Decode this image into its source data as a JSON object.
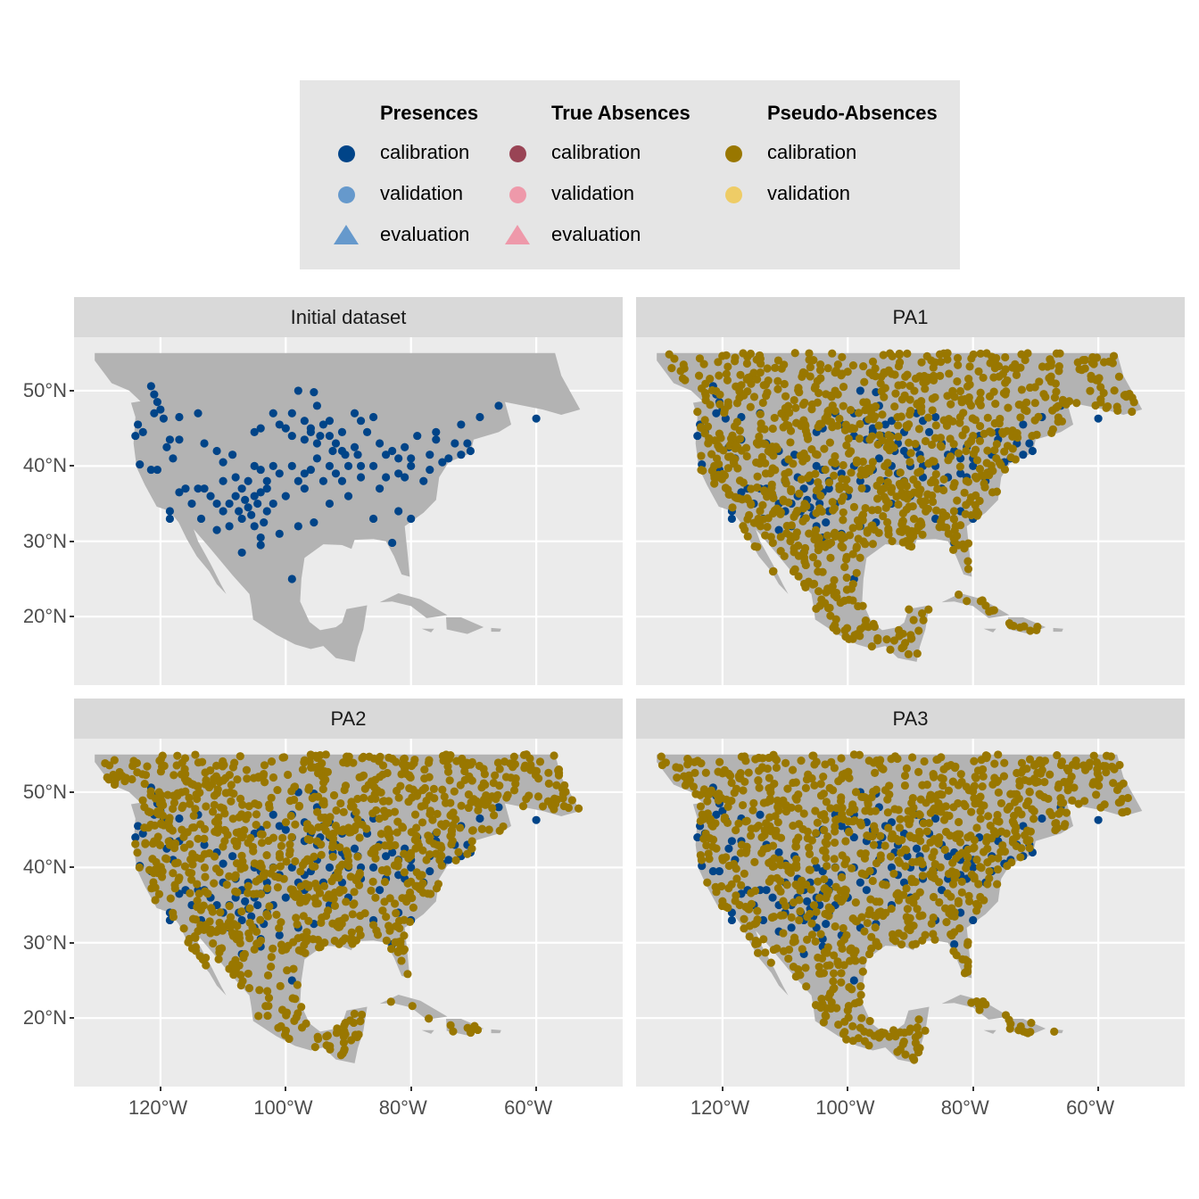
{
  "legend": {
    "groups": [
      {
        "title": "Presences",
        "items": [
          {
            "label": "calibration",
            "shape": "circle",
            "color": "#004488"
          },
          {
            "label": "validation",
            "shape": "circle",
            "color": "#6699CC"
          },
          {
            "label": "evaluation",
            "shape": "triangle",
            "color": "#6699CC"
          }
        ]
      },
      {
        "title": "True Absences",
        "items": [
          {
            "label": "calibration",
            "shape": "circle",
            "color": "#994455"
          },
          {
            "label": "validation",
            "shape": "circle",
            "color": "#EE99AA"
          },
          {
            "label": "evaluation",
            "shape": "triangle",
            "color": "#EE99AA"
          }
        ]
      },
      {
        "title": "Pseudo-Absences",
        "items": [
          {
            "label": "calibration",
            "shape": "circle",
            "color": "#997700"
          },
          {
            "label": "validation",
            "shape": "circle",
            "color": "#EECC66"
          }
        ]
      }
    ]
  },
  "chart_data": {
    "type": "scatter",
    "facets": [
      "Initial dataset",
      "PA1",
      "PA2",
      "PA3"
    ],
    "xlim": [
      -133.8,
      -46.2
    ],
    "ylim": [
      10.9,
      57.1
    ],
    "x_ticks": [
      {
        "value": -120,
        "label": "120°W"
      },
      {
        "value": -100,
        "label": "100°W"
      },
      {
        "value": -80,
        "label": "80°W"
      },
      {
        "value": -60,
        "label": "60°W"
      }
    ],
    "y_ticks": [
      {
        "value": 20,
        "label": "20°N"
      },
      {
        "value": 30,
        "label": "30°N"
      },
      {
        "value": 40,
        "label": "40°N"
      },
      {
        "value": 50,
        "label": "50°N"
      }
    ],
    "grid": true,
    "legend_position": "top",
    "colors": {
      "panel_bg": "#EBEBEB",
      "land": "#B3B3B3",
      "grid": "#FFFFFF",
      "presence_calibration": "#004488",
      "pa_calibration": "#997700"
    },
    "land": [
      [
        [
          -130.5,
          55
        ],
        [
          -57,
          55
        ],
        [
          -56,
          52
        ],
        [
          -53,
          47.5
        ],
        [
          -56,
          46.8
        ],
        [
          -59,
          47.5
        ],
        [
          -65,
          48.5
        ],
        [
          -64,
          45.5
        ],
        [
          -66,
          44.5
        ],
        [
          -70,
          43.5
        ],
        [
          -70.5,
          41.7
        ],
        [
          -74,
          40.5
        ],
        [
          -75.5,
          38.5
        ],
        [
          -76,
          35.5
        ],
        [
          -78,
          33.8
        ],
        [
          -81,
          32
        ],
        [
          -80.5,
          28
        ],
        [
          -80.2,
          25.3
        ],
        [
          -81.5,
          25.6
        ],
        [
          -82.7,
          28
        ],
        [
          -84,
          30
        ],
        [
          -86,
          30.3
        ],
        [
          -89,
          30.2
        ],
        [
          -89.5,
          29
        ],
        [
          -91,
          29.5
        ],
        [
          -94,
          29.6
        ],
        [
          -97,
          27.8
        ],
        [
          -97.5,
          25
        ],
        [
          -97.7,
          22
        ],
        [
          -96.2,
          19.3
        ],
        [
          -94.5,
          18.2
        ],
        [
          -92,
          18.6
        ],
        [
          -91,
          19.2
        ],
        [
          -90.3,
          21
        ],
        [
          -87,
          21.5
        ],
        [
          -87.6,
          18.3
        ],
        [
          -88.5,
          16
        ],
        [
          -89,
          14
        ],
        [
          -92,
          14.5
        ],
        [
          -94,
          16.1
        ],
        [
          -96,
          15.7
        ],
        [
          -98.5,
          16.3
        ],
        [
          -101.5,
          17.6
        ],
        [
          -105.2,
          19.6
        ],
        [
          -105.5,
          21.5
        ],
        [
          -105.8,
          23
        ],
        [
          -108.5,
          25.5
        ],
        [
          -112,
          29
        ],
        [
          -114.7,
          31.6
        ],
        [
          -114,
          30
        ],
        [
          -112,
          27
        ],
        [
          -110.3,
          24.2
        ],
        [
          -109.5,
          23
        ],
        [
          -111,
          24.3
        ],
        [
          -112.2,
          26
        ],
        [
          -114.2,
          28
        ],
        [
          -115.8,
          30.3
        ],
        [
          -117.1,
          32.5
        ],
        [
          -118.5,
          34
        ],
        [
          -120.6,
          34.6
        ],
        [
          -122.5,
          37.5
        ],
        [
          -123.8,
          39.8
        ],
        [
          -124.3,
          43
        ],
        [
          -124,
          46.5
        ],
        [
          -124.7,
          48.4
        ],
        [
          -123.2,
          48.6
        ],
        [
          -125,
          50
        ],
        [
          -127.8,
          51
        ],
        [
          -130.5,
          54
        ]
      ],
      [
        [
          -85,
          21.9
        ],
        [
          -82,
          23.1
        ],
        [
          -78.5,
          22.3
        ],
        [
          -74.2,
          20.2
        ],
        [
          -77.5,
          19.8
        ],
        [
          -80,
          21.4
        ],
        [
          -83,
          22
        ]
      ],
      [
        [
          -74.4,
          19.9
        ],
        [
          -72,
          19.9
        ],
        [
          -68.4,
          18.6
        ],
        [
          -71,
          17.7
        ],
        [
          -74.3,
          18.3
        ]
      ],
      [
        [
          -78.3,
          18.4
        ],
        [
          -76.3,
          18.4
        ],
        [
          -76.8,
          17.9
        ]
      ],
      [
        [
          -67.2,
          18.5
        ],
        [
          -65.6,
          18.4
        ],
        [
          -65.8,
          18
        ],
        [
          -67.2,
          18
        ]
      ]
    ],
    "presence_calibration": [
      [
        -121.5,
        50.6
      ],
      [
        -121,
        49.5
      ],
      [
        -120.5,
        48.5
      ],
      [
        -121,
        47
      ],
      [
        -120,
        47.5
      ],
      [
        -119.5,
        46.3
      ],
      [
        -117,
        46.5
      ],
      [
        -114,
        47
      ],
      [
        -123.6,
        45.5
      ],
      [
        -124,
        44
      ],
      [
        -122.8,
        44.5
      ],
      [
        -123.3,
        40.2
      ],
      [
        -121.5,
        39.5
      ],
      [
        -120.5,
        39.5
      ],
      [
        -118.5,
        43.5
      ],
      [
        -117,
        43.5
      ],
      [
        -119,
        42.5
      ],
      [
        -118,
        41
      ],
      [
        -113,
        43
      ],
      [
        -111,
        42
      ],
      [
        -110,
        40.5
      ],
      [
        -108.5,
        41.5
      ],
      [
        -105,
        44.5
      ],
      [
        -104,
        45
      ],
      [
        -101,
        45.5
      ],
      [
        -100,
        45
      ],
      [
        -99,
        44
      ],
      [
        -98,
        50
      ],
      [
        -95.5,
        49.8
      ],
      [
        -95,
        48
      ],
      [
        -97,
        46
      ],
      [
        -96,
        45
      ],
      [
        -94,
        45.5
      ],
      [
        -93,
        44
      ],
      [
        -92,
        43
      ],
      [
        -91,
        44.5
      ],
      [
        -89,
        47
      ],
      [
        -88,
        46
      ],
      [
        -86,
        46.5
      ],
      [
        -87,
        44.5
      ],
      [
        -85,
        43
      ],
      [
        -83,
        42
      ],
      [
        -81,
        42.5
      ],
      [
        -79,
        44
      ],
      [
        -76,
        43.5
      ],
      [
        -73,
        43
      ],
      [
        -71,
        43
      ],
      [
        -72,
        45.5
      ],
      [
        -69,
        46.5
      ],
      [
        -66,
        48
      ],
      [
        -60,
        46.3
      ],
      [
        -74,
        41
      ],
      [
        -75,
        40.5
      ],
      [
        -77,
        39.5
      ],
      [
        -80,
        40
      ],
      [
        -82,
        39
      ],
      [
        -84,
        38.5
      ],
      [
        -86,
        40
      ],
      [
        -88,
        40
      ],
      [
        -90,
        40
      ],
      [
        -93,
        40
      ],
      [
        -95,
        41
      ],
      [
        -97,
        39
      ],
      [
        -99,
        40
      ],
      [
        -101,
        39
      ],
      [
        -103,
        38
      ],
      [
        -104,
        39.5
      ],
      [
        -105,
        40
      ],
      [
        -106,
        38
      ],
      [
        -107,
        37
      ],
      [
        -108,
        36
      ],
      [
        -109,
        35
      ],
      [
        -110,
        34
      ],
      [
        -111,
        35
      ],
      [
        -112,
        36
      ],
      [
        -113,
        37
      ],
      [
        -114,
        37
      ],
      [
        -116,
        37
      ],
      [
        -117,
        36.5
      ],
      [
        -118.5,
        34
      ],
      [
        -118.5,
        33
      ],
      [
        -115,
        35
      ],
      [
        -113.5,
        33
      ],
      [
        -111,
        31.5
      ],
      [
        -109,
        32
      ],
      [
        -107,
        33
      ],
      [
        -105,
        32
      ],
      [
        -104,
        30.5
      ],
      [
        -104,
        29.5
      ],
      [
        -107,
        28.5
      ],
      [
        -101,
        31
      ],
      [
        -98,
        32
      ],
      [
        -95.5,
        32.5
      ],
      [
        -93,
        35
      ],
      [
        -90,
        36
      ],
      [
        -86,
        33
      ],
      [
        -82,
        34
      ],
      [
        -80,
        33
      ],
      [
        -83,
        29.8
      ],
      [
        -99,
        25
      ],
      [
        -102,
        35
      ],
      [
        -103,
        34
      ],
      [
        -106,
        34.5
      ],
      [
        -105,
        36
      ],
      [
        -103,
        37
      ],
      [
        -100,
        36
      ],
      [
        -97,
        37
      ],
      [
        -94,
        38
      ],
      [
        -91,
        38
      ],
      [
        -88,
        38.5
      ],
      [
        -85,
        37
      ],
      [
        -81,
        38.5
      ],
      [
        -78,
        38
      ],
      [
        -91,
        42
      ],
      [
        -89,
        42.5
      ],
      [
        -95,
        43
      ],
      [
        -97,
        43.5
      ],
      [
        -99,
        47
      ],
      [
        -102,
        47
      ],
      [
        -93,
        46
      ],
      [
        -80,
        41
      ],
      [
        -77,
        41.5
      ],
      [
        -76,
        44.5
      ],
      [
        -104.5,
        35
      ],
      [
        -105.5,
        33.5
      ],
      [
        -106.5,
        35.5
      ],
      [
        -104,
        36.5
      ],
      [
        -107.5,
        34
      ],
      [
        -103.5,
        32.5
      ],
      [
        -96,
        44.5
      ],
      [
        -94.5,
        44
      ],
      [
        -92.5,
        42
      ],
      [
        -90.5,
        41.5
      ],
      [
        -88.5,
        41.5
      ],
      [
        -84,
        41.5
      ],
      [
        -82,
        41
      ],
      [
        -72,
        41.5
      ],
      [
        -70.5,
        42
      ],
      [
        -108,
        38.5
      ],
      [
        -110,
        38
      ],
      [
        -102,
        40
      ],
      [
        -96,
        39.5
      ],
      [
        -92,
        39
      ],
      [
        -98,
        38
      ]
    ],
    "pseudo_absence_points_per_panel": 1000
  }
}
